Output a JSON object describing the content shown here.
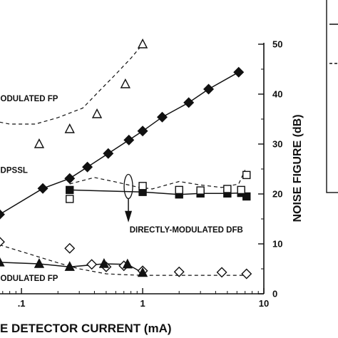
{
  "chart_data": {
    "type": "line",
    "xlabel": "E DETECTOR CURRENT (mA)",
    "ylabel": "NOISE FIGURE (dB)",
    "x_scale": "log",
    "xlim": [
      0.0665,
      10
    ],
    "ylim": [
      0,
      50
    ],
    "x_ticks": [
      {
        "value": 0.1,
        "label": ".1"
      },
      {
        "value": 1,
        "label": "1"
      },
      {
        "value": 10,
        "label": "10"
      }
    ],
    "y_ticks": [
      0,
      10,
      20,
      30,
      40,
      50
    ],
    "annotations": [
      {
        "text": "ODULATED FP",
        "x": 0.067,
        "y": 38.6
      },
      {
        "text": "DPSSL",
        "x": 0.067,
        "y": 24.2
      },
      {
        "text": "DIRECTLY-MODULATED DFB",
        "x": 0.78,
        "y": 12.3
      },
      {
        "text": "ODULATED FP",
        "x": 0.067,
        "y": 2.6
      }
    ],
    "series": [
      {
        "style": "solid",
        "marker": "filled-diamond",
        "points": [
          [
            0.066,
            15.9
          ],
          [
            0.15,
            21.1
          ],
          [
            0.25,
            23.1
          ],
          [
            0.35,
            25.4
          ],
          [
            0.52,
            28.1
          ],
          [
            0.77,
            30.8
          ],
          [
            1.0,
            32.6
          ],
          [
            1.45,
            35.4
          ],
          [
            2.4,
            38.3
          ],
          [
            3.5,
            41.0
          ],
          [
            6.2,
            44.4
          ]
        ]
      },
      {
        "style": "none",
        "marker": "open-triangle",
        "points": [
          [
            0.14,
            30.0
          ],
          [
            0.25,
            33.0
          ],
          [
            0.42,
            36.0
          ],
          [
            0.72,
            42.0
          ],
          [
            1.0,
            50.0
          ]
        ]
      },
      {
        "style": "dashed",
        "marker": "none",
        "points": [
          [
            0.066,
            34.4
          ],
          [
            0.08,
            34.0
          ],
          [
            0.13,
            34.0
          ],
          [
            0.2,
            35.3
          ],
          [
            0.32,
            37.2
          ],
          [
            0.45,
            40.9
          ],
          [
            0.6,
            44.0
          ],
          [
            0.8,
            47.2
          ],
          [
            1.0,
            50.0
          ]
        ]
      },
      {
        "style": "solid",
        "marker": "filled-square",
        "points": [
          [
            0.25,
            20.8
          ],
          [
            1.0,
            20.4
          ],
          [
            2.0,
            19.9
          ],
          [
            3.0,
            20.1
          ],
          [
            5.0,
            20.1
          ],
          [
            6.5,
            20.2
          ],
          [
            7.2,
            19.5
          ]
        ]
      },
      {
        "style": "none",
        "marker": "open-square",
        "points": [
          [
            0.25,
            19.0
          ],
          [
            1.0,
            21.6
          ],
          [
            2.0,
            20.8
          ],
          [
            3.0,
            20.7
          ],
          [
            5.0,
            21.0
          ],
          [
            6.5,
            20.8
          ],
          [
            7.2,
            23.8
          ]
        ]
      },
      {
        "style": "dashed",
        "marker": "none",
        "points": [
          [
            0.25,
            22.0
          ],
          [
            0.4,
            23.3
          ],
          [
            0.6,
            22.4
          ],
          [
            0.9,
            21.4
          ],
          [
            1.2,
            21.0
          ],
          [
            2.0,
            22.5
          ],
          [
            3.0,
            21.8
          ],
          [
            4.5,
            21.3
          ],
          [
            6.2,
            22.0
          ],
          [
            7.0,
            24.8
          ]
        ]
      },
      {
        "style": "none",
        "marker": "open-diamond",
        "points": [
          [
            0.066,
            10.4
          ],
          [
            0.25,
            9.1
          ],
          [
            0.38,
            5.9
          ],
          [
            0.5,
            5.4
          ],
          [
            0.7,
            5.6
          ],
          [
            1.0,
            4.6
          ],
          [
            2.0,
            4.4
          ],
          [
            4.5,
            4.3
          ],
          [
            7.2,
            4.0
          ]
        ]
      },
      {
        "style": "dashed",
        "marker": "none",
        "points": [
          [
            0.066,
            9.8
          ],
          [
            0.09,
            8.8
          ],
          [
            0.13,
            7.6
          ],
          [
            0.2,
            6.2
          ],
          [
            0.3,
            5.0
          ],
          [
            0.5,
            4.0
          ],
          [
            0.75,
            3.8
          ],
          [
            1.0,
            3.7
          ],
          [
            2.0,
            3.7
          ],
          [
            4.0,
            3.7
          ],
          [
            7.2,
            3.7
          ]
        ]
      },
      {
        "style": "solid",
        "marker": "filled-triangle",
        "points": [
          [
            0.066,
            6.3
          ],
          [
            0.14,
            6.0
          ],
          [
            0.25,
            5.4
          ],
          [
            0.48,
            6.0
          ],
          [
            0.75,
            5.9
          ],
          [
            1.0,
            4.2
          ]
        ]
      }
    ]
  },
  "legend_box": {
    "line_styles": [
      "solid",
      "dashed"
    ]
  }
}
